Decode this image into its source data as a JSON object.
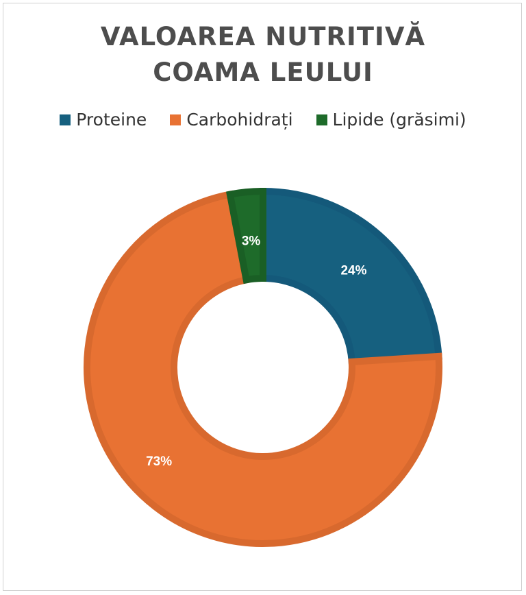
{
  "title_lines": [
    "VALOAREA NUTRITIVĂ",
    "COAMA LEULUI"
  ],
  "chart_data": {
    "type": "pie",
    "donut": true,
    "title": "VALOAREA NUTRITIVĂ COAMA LEULUI",
    "legend_placement": "top",
    "categories": [
      "Proteine",
      "Carbohidrați",
      "Lipide (grăsimi)"
    ],
    "values": [
      24,
      73,
      3
    ],
    "data_labels": [
      "24%",
      "73%",
      "3%"
    ],
    "colors": [
      "#16607f",
      "#e87233",
      "#1e6b2a"
    ],
    "edge_colors": [
      "#14597a",
      "#d8692e",
      "#1a5f25"
    ]
  }
}
